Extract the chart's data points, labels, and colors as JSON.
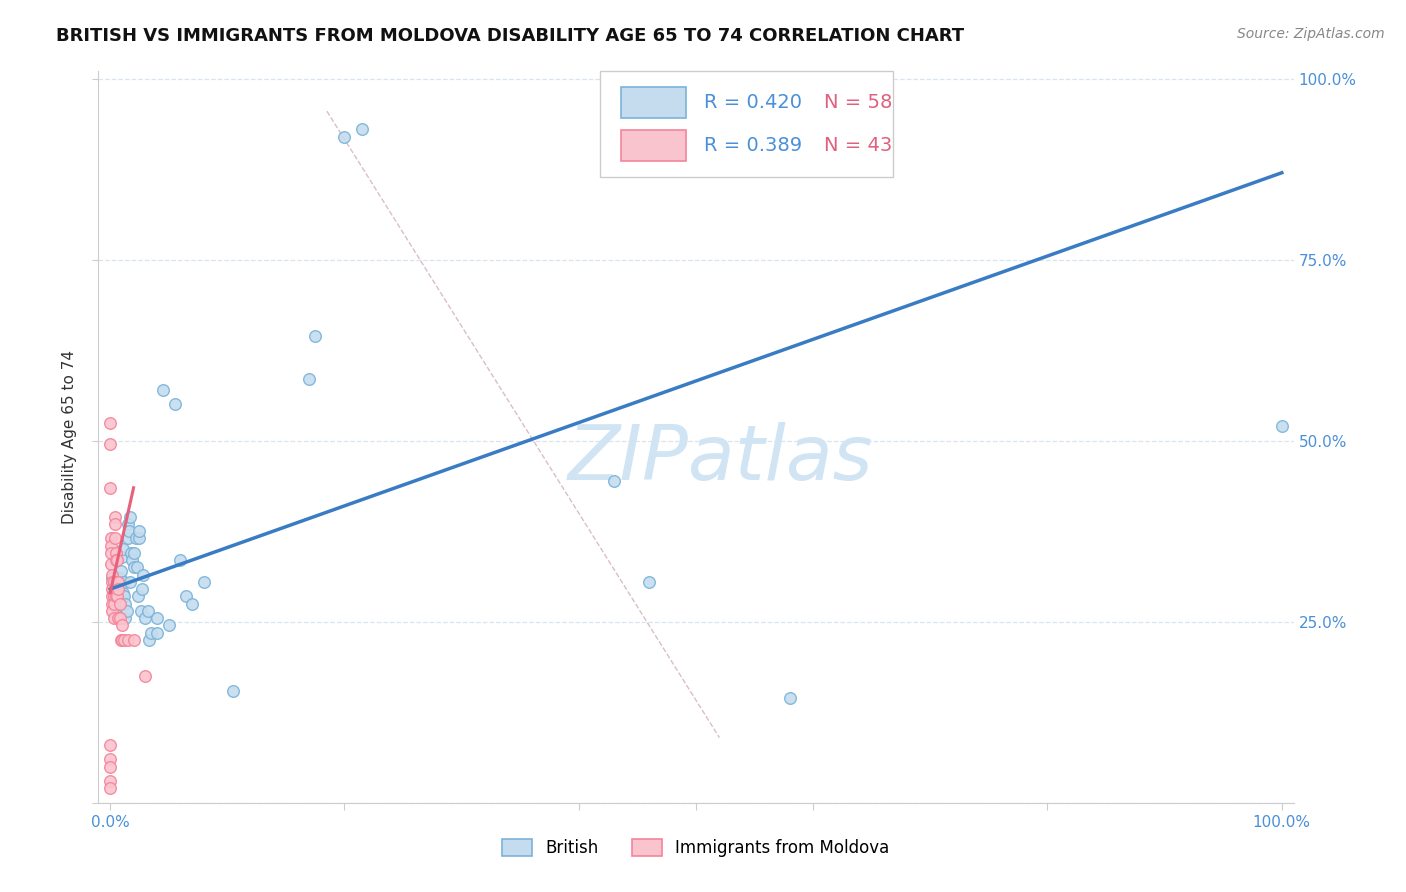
{
  "title": "BRITISH VS IMMIGRANTS FROM MOLDOVA DISABILITY AGE 65 TO 74 CORRELATION CHART",
  "source": "Source: ZipAtlas.com",
  "ylabel": "Disability Age 65 to 74",
  "legend_entries": [
    {
      "label": "British",
      "R": "0.420",
      "N": "58"
    },
    {
      "label": "Immigrants from Moldova",
      "R": "0.389",
      "N": "43"
    }
  ],
  "british_scatter": [
    [
      0.002,
      0.31
    ],
    [
      0.003,
      0.285
    ],
    [
      0.004,
      0.295
    ],
    [
      0.005,
      0.27
    ],
    [
      0.005,
      0.3
    ],
    [
      0.006,
      0.285
    ],
    [
      0.007,
      0.275
    ],
    [
      0.007,
      0.3
    ],
    [
      0.008,
      0.29
    ],
    [
      0.008,
      0.31
    ],
    [
      0.009,
      0.32
    ],
    [
      0.01,
      0.34
    ],
    [
      0.01,
      0.285
    ],
    [
      0.011,
      0.35
    ],
    [
      0.011,
      0.29
    ],
    [
      0.012,
      0.305
    ],
    [
      0.012,
      0.285
    ],
    [
      0.013,
      0.275
    ],
    [
      0.013,
      0.255
    ],
    [
      0.014,
      0.265
    ],
    [
      0.015,
      0.385
    ],
    [
      0.015,
      0.365
    ],
    [
      0.016,
      0.375
    ],
    [
      0.017,
      0.305
    ],
    [
      0.017,
      0.395
    ],
    [
      0.018,
      0.345
    ],
    [
      0.019,
      0.335
    ],
    [
      0.02,
      0.345
    ],
    [
      0.02,
      0.325
    ],
    [
      0.022,
      0.365
    ],
    [
      0.023,
      0.325
    ],
    [
      0.024,
      0.285
    ],
    [
      0.025,
      0.365
    ],
    [
      0.025,
      0.375
    ],
    [
      0.026,
      0.265
    ],
    [
      0.027,
      0.295
    ],
    [
      0.028,
      0.315
    ],
    [
      0.03,
      0.255
    ],
    [
      0.032,
      0.265
    ],
    [
      0.033,
      0.225
    ],
    [
      0.035,
      0.235
    ],
    [
      0.04,
      0.255
    ],
    [
      0.04,
      0.235
    ],
    [
      0.045,
      0.57
    ],
    [
      0.05,
      0.245
    ],
    [
      0.055,
      0.55
    ],
    [
      0.06,
      0.335
    ],
    [
      0.065,
      0.285
    ],
    [
      0.07,
      0.275
    ],
    [
      0.08,
      0.305
    ],
    [
      0.105,
      0.155
    ],
    [
      0.17,
      0.585
    ],
    [
      0.175,
      0.645
    ],
    [
      0.2,
      0.92
    ],
    [
      0.215,
      0.93
    ],
    [
      0.43,
      0.445
    ],
    [
      0.46,
      0.305
    ],
    [
      0.58,
      0.145
    ],
    [
      1.0,
      0.52
    ]
  ],
  "moldova_scatter": [
    [
      0.0,
      0.525
    ],
    [
      0.0,
      0.495
    ],
    [
      0.0,
      0.435
    ],
    [
      0.001,
      0.365
    ],
    [
      0.001,
      0.355
    ],
    [
      0.001,
      0.345
    ],
    [
      0.001,
      0.33
    ],
    [
      0.002,
      0.315
    ],
    [
      0.002,
      0.305
    ],
    [
      0.002,
      0.295
    ],
    [
      0.002,
      0.285
    ],
    [
      0.002,
      0.275
    ],
    [
      0.002,
      0.265
    ],
    [
      0.003,
      0.305
    ],
    [
      0.003,
      0.285
    ],
    [
      0.003,
      0.275
    ],
    [
      0.003,
      0.255
    ],
    [
      0.004,
      0.395
    ],
    [
      0.004,
      0.385
    ],
    [
      0.004,
      0.365
    ],
    [
      0.005,
      0.345
    ],
    [
      0.005,
      0.335
    ],
    [
      0.005,
      0.285
    ],
    [
      0.006,
      0.335
    ],
    [
      0.006,
      0.305
    ],
    [
      0.006,
      0.285
    ],
    [
      0.007,
      0.305
    ],
    [
      0.007,
      0.295
    ],
    [
      0.007,
      0.255
    ],
    [
      0.008,
      0.275
    ],
    [
      0.008,
      0.255
    ],
    [
      0.009,
      0.225
    ],
    [
      0.01,
      0.245
    ],
    [
      0.01,
      0.225
    ],
    [
      0.012,
      0.225
    ],
    [
      0.015,
      0.225
    ],
    [
      0.02,
      0.225
    ],
    [
      0.03,
      0.175
    ],
    [
      0.0,
      0.08
    ],
    [
      0.0,
      0.06
    ],
    [
      0.0,
      0.05
    ],
    [
      0.0,
      0.03
    ],
    [
      0.0,
      0.02
    ]
  ],
  "british_line": {
    "x": [
      0.0,
      1.0
    ],
    "y": [
      0.295,
      0.87
    ]
  },
  "moldova_line": {
    "x": [
      0.0,
      0.02
    ],
    "y": [
      0.29,
      0.435
    ]
  },
  "diag_line": {
    "x": [
      0.185,
      0.52
    ],
    "y": [
      0.955,
      0.09
    ]
  },
  "xlim": [
    -0.01,
    1.01
  ],
  "ylim": [
    0.0,
    1.01
  ],
  "scatter_size": 70,
  "british_face": "#c5dcee",
  "british_edge": "#7ab3d9",
  "moldova_face": "#fac4cf",
  "moldova_edge": "#f48499",
  "british_line_color": "#3a7cc4",
  "moldova_line_color": "#e8607a",
  "diag_line_color": "#d4b8c0",
  "grid_color": "#d8e4f0",
  "watermark_color": "#d0e4f4",
  "axis_tick_color": "#4a90d9",
  "legend_R_color": "#4a90d9",
  "legend_N_color": "#e06080",
  "title_fontsize": 13,
  "ylabel_fontsize": 11,
  "tick_fontsize": 11,
  "source_fontsize": 10
}
